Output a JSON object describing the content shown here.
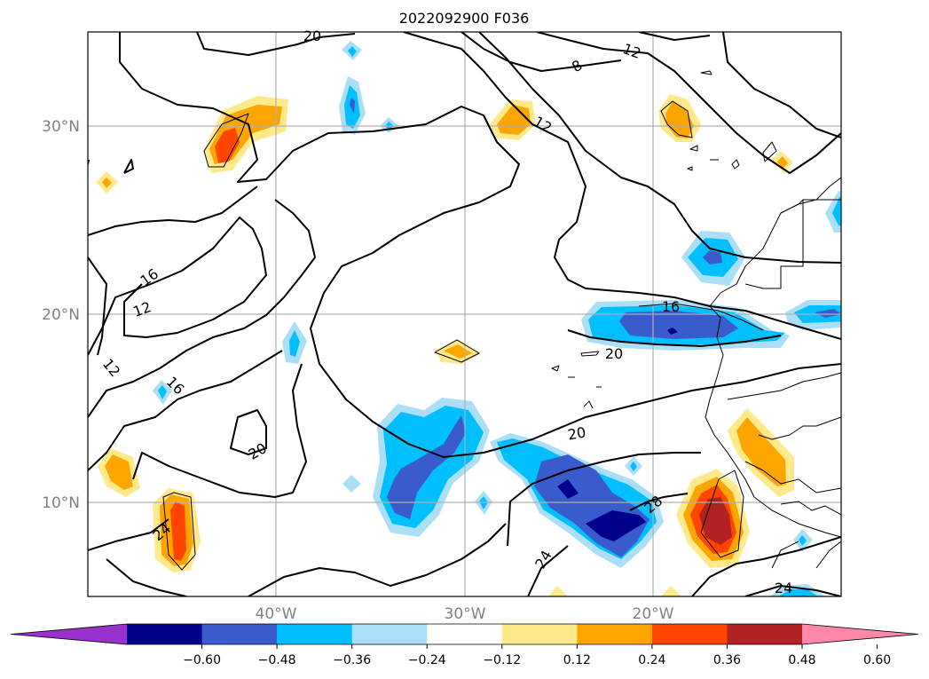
{
  "title": "2022092900 F036",
  "map": {
    "lon_range": [
      -50,
      -10
    ],
    "lat_range": [
      5,
      35
    ],
    "lat_ticks": [
      {
        "value": 10,
        "label": "10°N"
      },
      {
        "value": 20,
        "label": "20°N"
      },
      {
        "value": 30,
        "label": "30°N"
      }
    ],
    "lon_ticks": [
      {
        "value": -40,
        "label": "40°W"
      },
      {
        "value": -30,
        "label": "30°W"
      },
      {
        "value": -20,
        "label": "20°W"
      }
    ],
    "grid": true,
    "contour_labels": [
      "12",
      "8",
      "12",
      "20",
      "16",
      "12",
      "12",
      "16",
      "16",
      "20",
      "20",
      "20",
      "28",
      "24",
      "24",
      "24"
    ]
  },
  "colorbar": {
    "ticks": [
      "−0.60",
      "−0.48",
      "−0.36",
      "−0.24",
      "−0.12",
      "0.12",
      "0.24",
      "0.36",
      "0.48",
      "0.60"
    ],
    "colors": [
      "#9932cc",
      "#00008b",
      "#3a5bcc",
      "#00bfff",
      "#aadff7",
      "#ffffff",
      "#ffe98a",
      "#ffa500",
      "#ff4500",
      "#b22222",
      "#ff88aa"
    ],
    "extend": "both"
  }
}
